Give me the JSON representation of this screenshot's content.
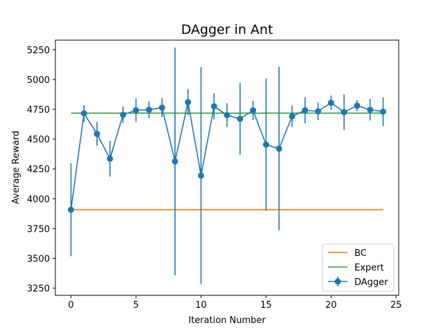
{
  "chart_data": {
    "type": "line",
    "title": "DAgger in Ant",
    "xlabel": "Iteration Number",
    "ylabel": "Average Reward",
    "xlim": [
      -1.2,
      25.2
    ],
    "ylim": [
      3190,
      5330
    ],
    "xticks": [
      0,
      5,
      10,
      15,
      20,
      25
    ],
    "yticks": [
      3250,
      3500,
      3750,
      4000,
      4250,
      4500,
      4750,
      5000,
      5250
    ],
    "grid": false,
    "legend_position": "lower-right",
    "series": [
      {
        "name": "BC",
        "kind": "line",
        "color": "#ff7f0e",
        "x": [
          0,
          24
        ],
        "y": [
          3908,
          3908
        ]
      },
      {
        "name": "Expert",
        "kind": "line",
        "color": "#2ca02c",
        "x": [
          0,
          24
        ],
        "y": [
          4718,
          4718
        ]
      },
      {
        "name": "DAgger",
        "kind": "errorbar",
        "color": "#1f77b4",
        "x": [
          0,
          1,
          2,
          3,
          4,
          5,
          6,
          7,
          8,
          9,
          10,
          11,
          12,
          13,
          14,
          15,
          16,
          17,
          18,
          19,
          20,
          21,
          22,
          23,
          24
        ],
        "y": [
          3908,
          4716,
          4544,
          4336,
          4704,
          4742,
          4746,
          4764,
          4313,
          4810,
          4194,
          4775,
          4701,
          4670,
          4741,
          4454,
          4420,
          4691,
          4742,
          4733,
          4805,
          4726,
          4780,
          4746,
          4730
        ],
        "err": [
          390,
          70,
          100,
          150,
          70,
          100,
          70,
          80,
          955,
          110,
          910,
          110,
          100,
          300,
          80,
          555,
          685,
          90,
          110,
          75,
          60,
          150,
          45,
          90,
          120
        ]
      }
    ]
  }
}
